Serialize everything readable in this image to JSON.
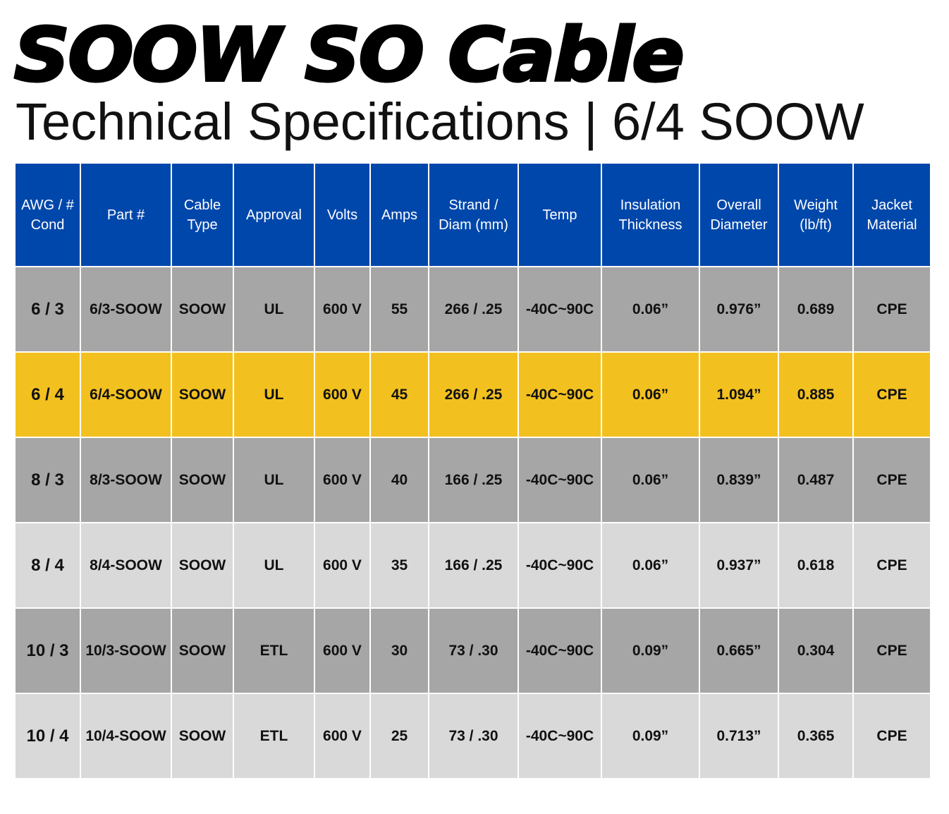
{
  "title": "SOOW SO Cable",
  "subtitle": "Technical Specifications | 6/4 SOOW",
  "colors": {
    "header": "#0047AB",
    "highlight": "#F3C11F",
    "row_dark": "#a6a6a6",
    "row_light": "#d9d9d9"
  },
  "table": {
    "headers": [
      "AWG / # Cond",
      "Part #",
      "Cable Type",
      "Approval",
      "Volts",
      "Amps",
      "Strand / Diam (mm)",
      "Temp",
      "Insulation Thickness",
      "Overall Diameter",
      "Weight (lb/ft)",
      "Jacket Material"
    ],
    "rows": [
      {
        "style": "dark",
        "cells": [
          "6 / 3",
          "6/3-SOOW",
          "SOOW",
          "UL",
          "600 V",
          "55",
          "266 / .25",
          "-40C~90C",
          "0.06”",
          "0.976”",
          "0.689",
          "CPE"
        ]
      },
      {
        "style": "hl",
        "cells": [
          "6 / 4",
          "6/4-SOOW",
          "SOOW",
          "UL",
          "600 V",
          "45",
          "266 / .25",
          "-40C~90C",
          "0.06”",
          "1.094”",
          "0.885",
          "CPE"
        ]
      },
      {
        "style": "dark",
        "cells": [
          "8 / 3",
          "8/3-SOOW",
          "SOOW",
          "UL",
          "600 V",
          "40",
          "166 / .25",
          "-40C~90C",
          "0.06”",
          "0.839”",
          "0.487",
          "CPE"
        ]
      },
      {
        "style": "light",
        "cells": [
          "8 / 4",
          "8/4-SOOW",
          "SOOW",
          "UL",
          "600 V",
          "35",
          "166 / .25",
          "-40C~90C",
          "0.06”",
          "0.937”",
          "0.618",
          "CPE"
        ]
      },
      {
        "style": "dark",
        "cells": [
          "10 / 3",
          "10/3-SOOW",
          "SOOW",
          "ETL",
          "600 V",
          "30",
          "73 / .30",
          "-40C~90C",
          "0.09”",
          "0.665”",
          "0.304",
          "CPE"
        ]
      },
      {
        "style": "light",
        "cells": [
          "10 / 4",
          "10/4-SOOW",
          "SOOW",
          "ETL",
          "600 V",
          "25",
          "73 / .30",
          "-40C~90C",
          "0.09”",
          "0.713”",
          "0.365",
          "CPE"
        ]
      }
    ]
  }
}
